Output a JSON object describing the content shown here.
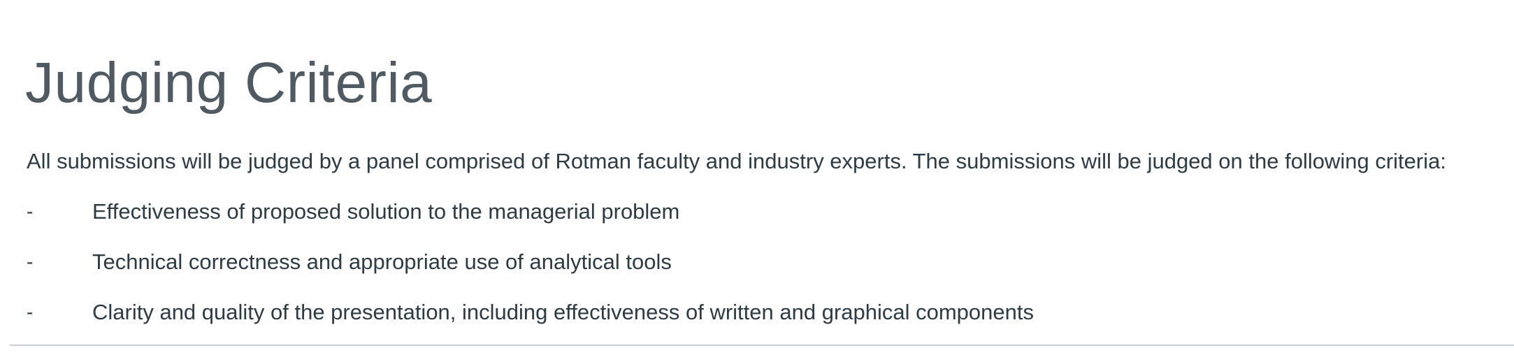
{
  "heading": "Judging Criteria",
  "intro": "All submissions will be judged by a panel comprised of Rotman faculty and industry experts.  The submissions will be judged on the following criteria:",
  "criteria": [
    {
      "marker": "-",
      "text": "Effectiveness of proposed solution to the managerial problem"
    },
    {
      "marker": "-",
      "text": "Technical correctness and appropriate use of analytical tools"
    },
    {
      "marker": "-",
      "text": "Clarity and quality of the presentation, including effectiveness of written and graphical components"
    }
  ],
  "colors": {
    "heading": "#4f5a63",
    "body_text": "#2d3b45",
    "divider": "#c7cdd1"
  }
}
